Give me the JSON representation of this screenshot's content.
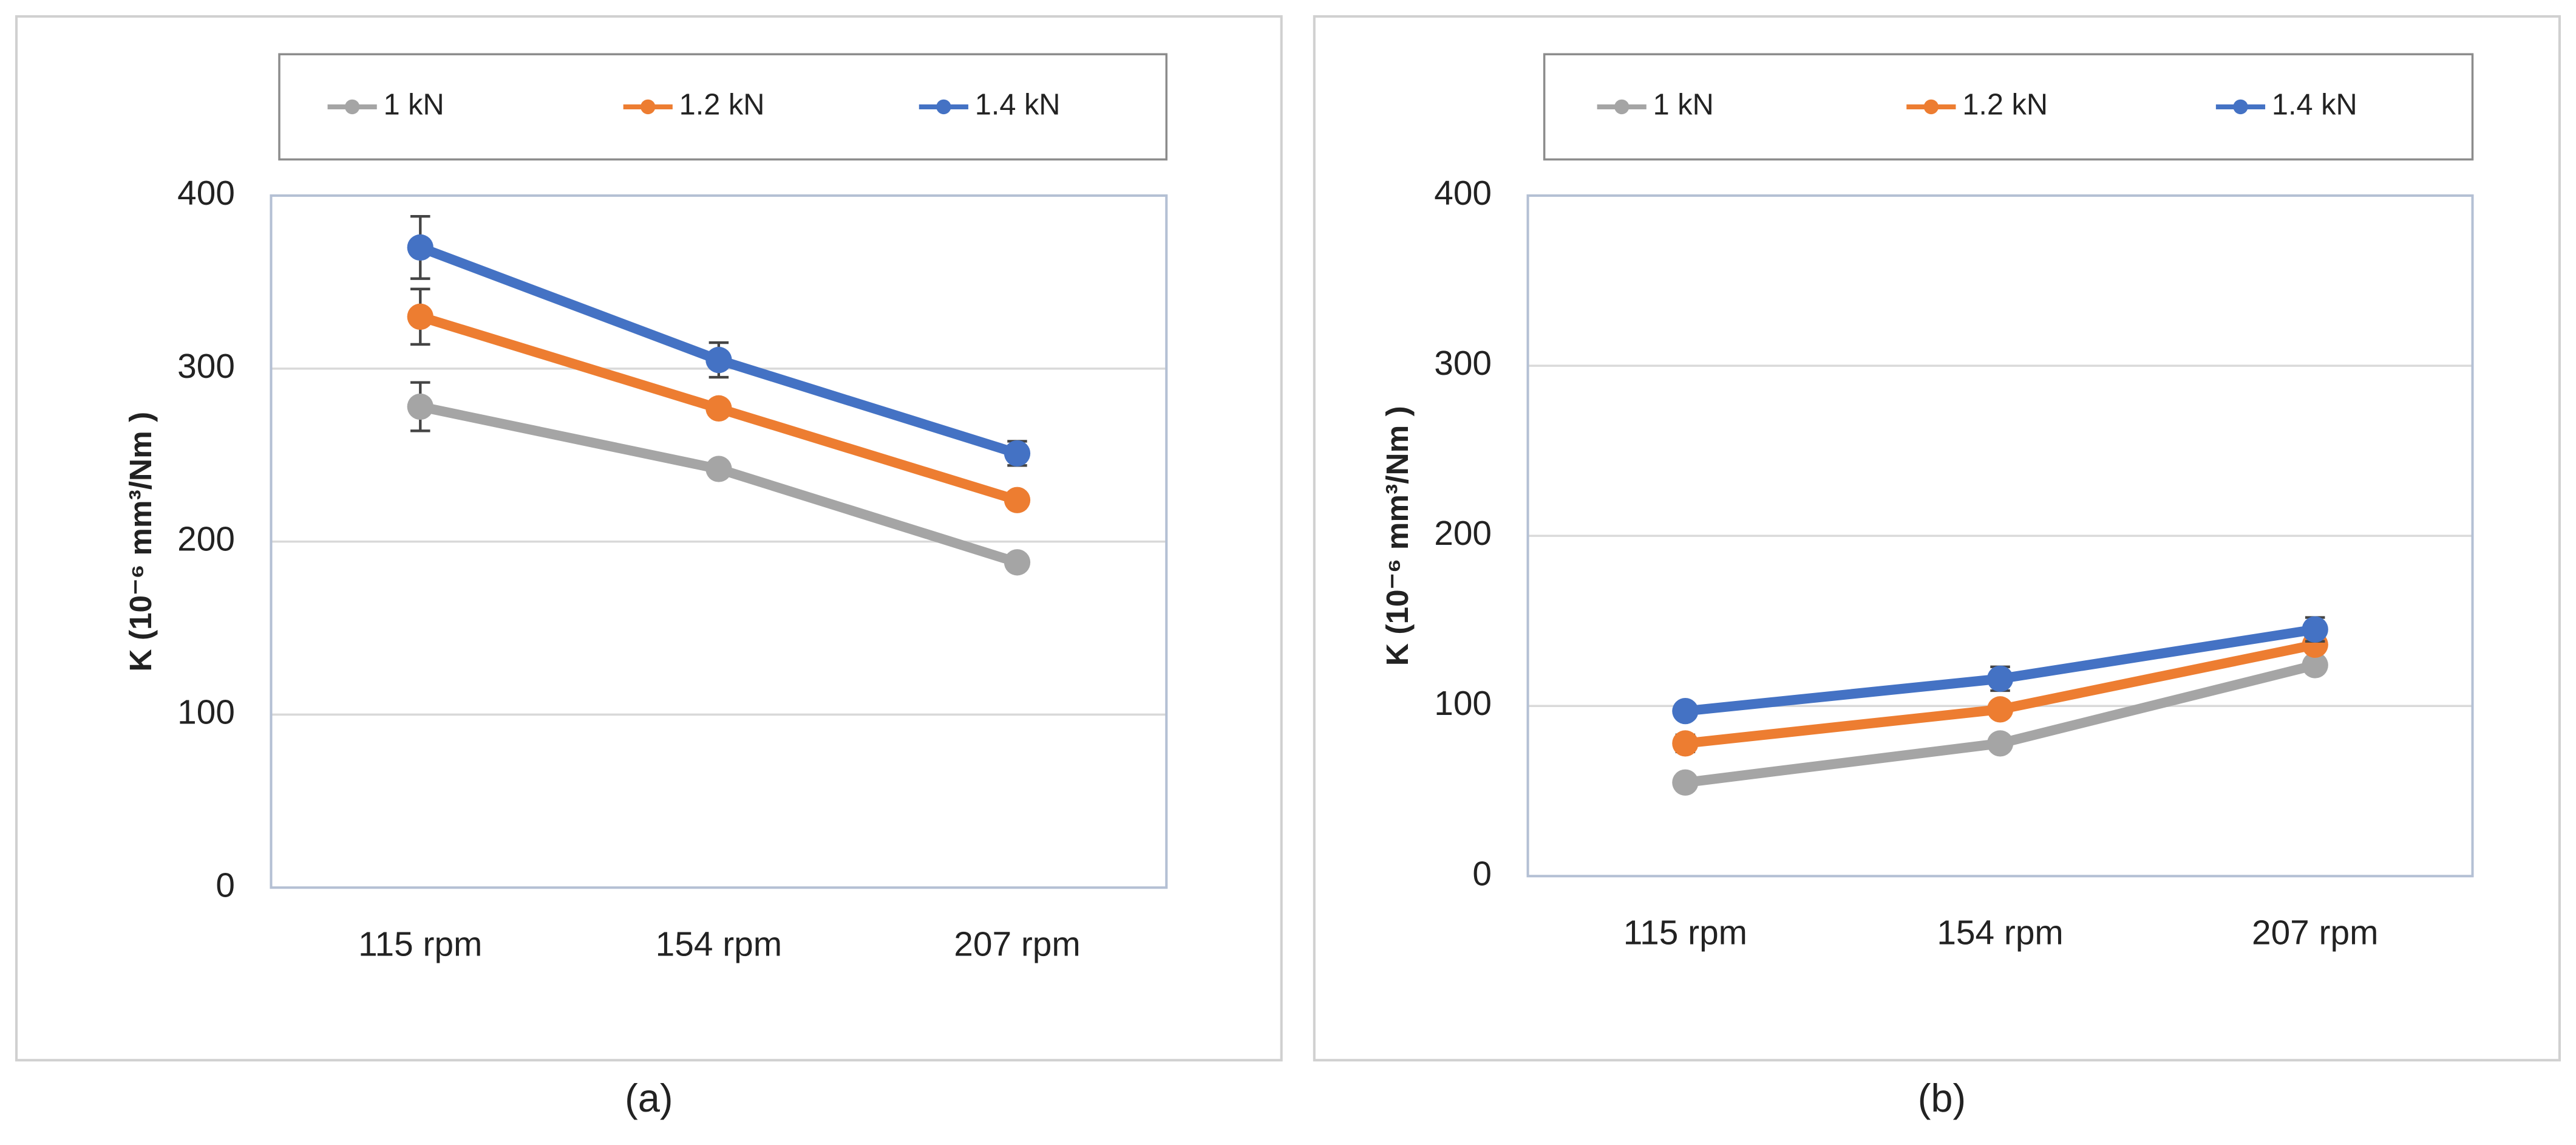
{
  "chart_data": [
    {
      "type": "line",
      "panel_label": "(a)",
      "y_label": "K (10⁻⁶ mm³/Nm )",
      "categories": [
        "115 rpm",
        "154 rpm",
        "207 rpm"
      ],
      "series": [
        {
          "name": "1 kN",
          "color": "#a5a5a5",
          "values": [
            278,
            242,
            188
          ],
          "errors": [
            14,
            3,
            3
          ]
        },
        {
          "name": "1.2 kN",
          "color": "#ed7d31",
          "values": [
            330,
            277,
            224
          ],
          "errors": [
            16,
            3,
            3
          ]
        },
        {
          "name": "1.4 kN",
          "color": "#4472c4",
          "values": [
            370,
            305,
            251
          ],
          "errors": [
            18,
            10,
            7
          ]
        }
      ],
      "ylim": [
        0,
        400
      ],
      "yticks": [
        0,
        100,
        200,
        300,
        400
      ],
      "grid": true,
      "legend": "top"
    },
    {
      "type": "line",
      "panel_label": "(b)",
      "y_label": "K (10⁻⁶ mm³/Nm )",
      "categories": [
        "115 rpm",
        "154 rpm",
        "207 rpm"
      ],
      "series": [
        {
          "name": "1 kN",
          "color": "#a5a5a5",
          "values": [
            55,
            78,
            124
          ],
          "errors": [
            3,
            3,
            3
          ]
        },
        {
          "name": "1.2 kN",
          "color": "#ed7d31",
          "values": [
            78,
            98,
            136
          ],
          "errors": [
            5,
            3,
            3
          ]
        },
        {
          "name": "1.4 kN",
          "color": "#4472c4",
          "values": [
            97,
            116,
            145
          ],
          "errors": [
            4,
            7,
            7
          ]
        }
      ],
      "ylim": [
        0,
        400
      ],
      "yticks": [
        0,
        100,
        200,
        300,
        400
      ],
      "grid": true,
      "legend": "top"
    }
  ]
}
